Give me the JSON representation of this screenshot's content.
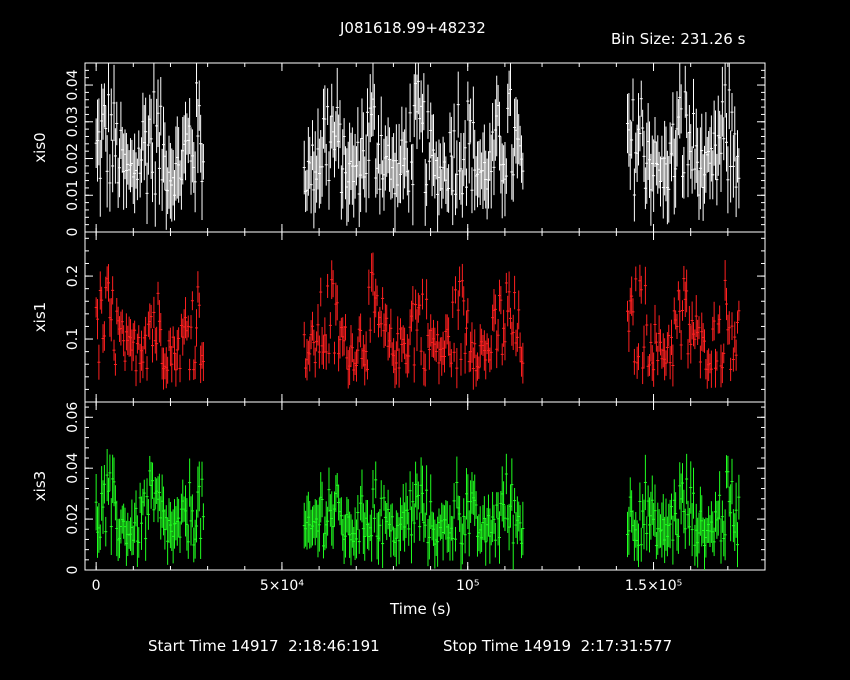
{
  "title": "J081618.99+48232",
  "bin_size": "Bin Size: 231.26 s",
  "footer": {
    "start": "Start Time 14917  2:18:46:191",
    "stop": "Stop Time 14919  2:17:31:577"
  },
  "colors": {
    "background": "#000000",
    "axes": "#ffffff"
  },
  "chart_data": {
    "type": "scatter",
    "style": "light curve, points with vertical error bars, three stacked panels sharing x axis",
    "xlabel": "Time (s)",
    "xlim": [
      -3000,
      180000
    ],
    "x_ticks": [
      0,
      50000,
      100000,
      150000
    ],
    "x_tick_labels": [
      "0",
      "5×10⁴",
      "10⁵",
      "1.5×10⁵"
    ],
    "segments": [
      [
        0,
        29000
      ],
      [
        56000,
        115000
      ],
      [
        143000,
        173000
      ]
    ],
    "panels": [
      {
        "name": "xis0",
        "color": "#ffffff",
        "ylim": [
          0,
          0.046
        ],
        "y_ticks": [
          0,
          0.01,
          0.02,
          0.03,
          0.04
        ],
        "y_tick_labels": [
          "0",
          "0.01",
          "0.02",
          "0.03",
          "0.04"
        ],
        "typical_rate": 0.018,
        "typical_error": 0.008
      },
      {
        "name": "xis1",
        "color": "#ff2020",
        "ylim": [
          0,
          0.27
        ],
        "y_ticks": [
          0.1,
          0.2
        ],
        "y_tick_labels": [
          "0.1",
          "0.2"
        ],
        "typical_rate": 0.09,
        "typical_error": 0.025
      },
      {
        "name": "xis3",
        "color": "#20ff20",
        "ylim": [
          0,
          0.066
        ],
        "y_ticks": [
          0,
          0.02,
          0.04,
          0.06
        ],
        "y_tick_labels": [
          "0",
          "0.02",
          "0.04",
          "0.06"
        ],
        "typical_rate": 0.017,
        "typical_error": 0.008
      }
    ]
  }
}
